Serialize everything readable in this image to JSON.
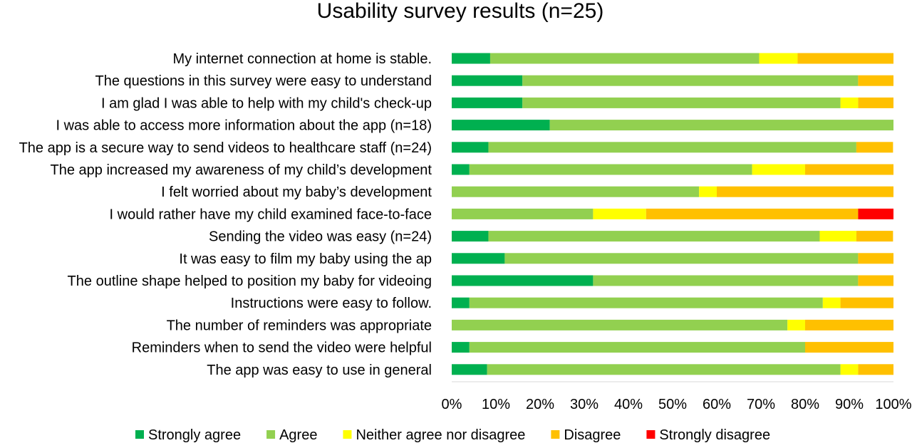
{
  "chart_data": {
    "type": "bar",
    "orientation": "horizontal",
    "stacked": "percent",
    "title": "Usability survey results (n=25)",
    "xlabel": "",
    "ylabel": "",
    "xlim": [
      0,
      100
    ],
    "x_ticks": [
      "0%",
      "10%",
      "20%",
      "30%",
      "40%",
      "50%",
      "60%",
      "70%",
      "80%",
      "90%",
      "100%"
    ],
    "grid": false,
    "legend_position": "bottom",
    "categories": [
      "My internet connection at home is stable.",
      "The questions in this survey were easy to understand",
      "I am glad I was able to help with my child's check-up",
      "I was able to access more information about the app (n=18)",
      "The app is a secure way to send videos to healthcare staff (n=24)",
      "The app increased my awareness of my child’s development",
      "I felt worried about my baby’s development",
      "I would rather have my child examined face-to-face",
      "Sending the video was easy (n=24)",
      "It was easy to film my baby using the ap",
      "The outline shape helped to position my baby for videoing",
      "Instructions were easy to follow.",
      "The number of reminders was appropriate",
      "Reminders when to send the video were helpful",
      "The app was easy to use in general"
    ],
    "series": [
      {
        "name": "Strongly agree",
        "color": "#00b050",
        "values": [
          8.7,
          16,
          16,
          22.2,
          8.3,
          4,
          0,
          0,
          8.3,
          12,
          32,
          4,
          0,
          4,
          8
        ]
      },
      {
        "name": "Agree",
        "color": "#92d050",
        "values": [
          60.9,
          76,
          72,
          77.8,
          83.3,
          64,
          56,
          32,
          75,
          80,
          60,
          80,
          76,
          76,
          80
        ]
      },
      {
        "name": "Neither agree nor disagree",
        "color": "#ffff00",
        "values": [
          8.7,
          0,
          4,
          0,
          0,
          12,
          4,
          12,
          8.3,
          0,
          0,
          4,
          4,
          0,
          4
        ]
      },
      {
        "name": "Disagree",
        "color": "#ffc000",
        "values": [
          21.7,
          8,
          8,
          0,
          8.3,
          20,
          40,
          48,
          8.3,
          8,
          8,
          12,
          20,
          20,
          8
        ]
      },
      {
        "name": "Strongly disagree",
        "color": "#ff0000",
        "values": [
          0,
          0,
          0,
          0,
          0,
          0,
          0,
          8,
          0,
          0,
          0,
          0,
          0,
          0,
          0
        ]
      }
    ]
  }
}
